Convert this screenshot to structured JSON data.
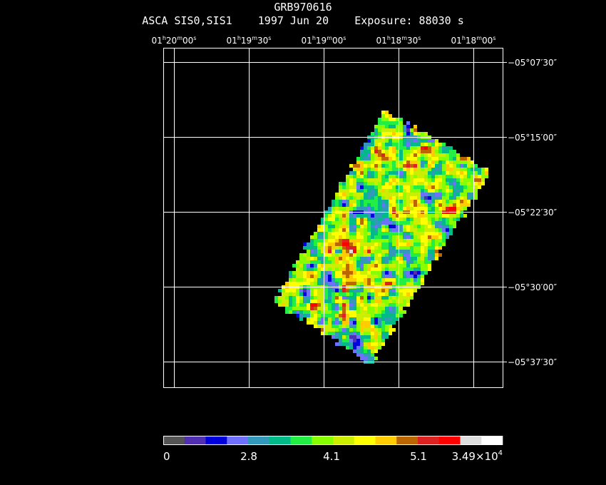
{
  "header": {
    "title": "GRB970616",
    "instrument": "ASCA SIS0,SIS1",
    "date": "1997 Jun 20",
    "exposure": "Exposure: 88030 s"
  },
  "chart_data": {
    "type": "heatmap",
    "ra_ticks": [
      {
        "h": "01",
        "m": "20",
        "s": "00"
      },
      {
        "h": "01",
        "m": "19",
        "s": "30"
      },
      {
        "h": "01",
        "m": "19",
        "s": "00"
      },
      {
        "h": "01",
        "m": "18",
        "s": "30"
      },
      {
        "h": "01",
        "m": "18",
        "s": "00"
      }
    ],
    "dec_ticks": [
      {
        "d": "−05",
        "m": "07",
        "s": "30"
      },
      {
        "d": "−05",
        "m": "15",
        "s": "00"
      },
      {
        "d": "−05",
        "m": "22",
        "s": "30"
      },
      {
        "d": "−05",
        "m": "30",
        "s": "00"
      },
      {
        "d": "−05",
        "m": "37",
        "s": "30"
      }
    ],
    "grid": true,
    "colorbar": {
      "labels": [
        {
          "text": "0"
        },
        {
          "text": "2.8"
        },
        {
          "text": "4.1"
        },
        {
          "text": "5.1"
        },
        {
          "mantissa": "3.49×10",
          "exponent": "4"
        }
      ],
      "colors": [
        "#555555",
        "#5030b0",
        "#0000dd",
        "#7070ff",
        "#3399bb",
        "#00bb88",
        "#22ee44",
        "#88ff00",
        "#ccee00",
        "#ffff00",
        "#ffcc00",
        "#bb6600",
        "#dd2222",
        "#ff0000",
        "#dddddd",
        "#ffffff"
      ]
    }
  }
}
